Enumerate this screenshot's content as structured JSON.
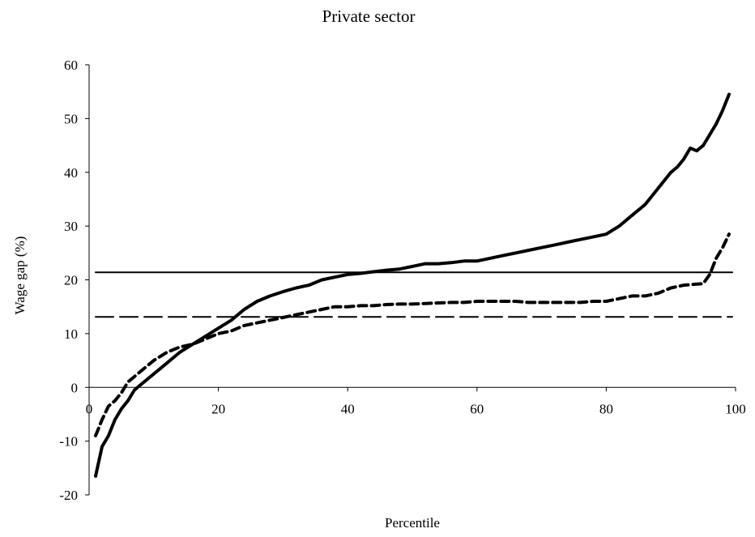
{
  "chart_data": {
    "type": "line",
    "title": "Private sector",
    "xlabel": "Percentile",
    "ylabel": "Wage gap (%)",
    "xlim": [
      0,
      100
    ],
    "ylim": [
      -20,
      60
    ],
    "x_ticks": [
      0,
      20,
      40,
      60,
      80,
      100
    ],
    "y_ticks": [
      -20,
      -10,
      0,
      10,
      20,
      30,
      40,
      50,
      60
    ],
    "grid": false,
    "legend": "none",
    "series": [
      {
        "style": "solid",
        "color": "#000000",
        "x": [
          1,
          2,
          3,
          4,
          5,
          6,
          7,
          8,
          9,
          10,
          12,
          14,
          16,
          18,
          20,
          22,
          24,
          26,
          28,
          30,
          32,
          34,
          36,
          38,
          40,
          42,
          44,
          46,
          48,
          50,
          52,
          54,
          56,
          58,
          60,
          62,
          64,
          66,
          68,
          70,
          72,
          74,
          76,
          78,
          80,
          82,
          84,
          86,
          88,
          89,
          90,
          91,
          92,
          93,
          94,
          95,
          96,
          97,
          98,
          99
        ],
        "values": [
          -16.5,
          -11,
          -9,
          -6,
          -4,
          -2.5,
          -0.5,
          0.5,
          1.5,
          2.5,
          4.5,
          6.5,
          8,
          9.5,
          11,
          12.5,
          14.5,
          16,
          17,
          17.8,
          18.5,
          19,
          20,
          20.5,
          21,
          21.2,
          21.5,
          21.8,
          22,
          22.5,
          23,
          23,
          23.2,
          23.5,
          23.5,
          24,
          24.5,
          25,
          25.5,
          26,
          26.5,
          27,
          27.5,
          28,
          28.5,
          30,
          32,
          34,
          37,
          38.5,
          40,
          41,
          42.5,
          44.5,
          44,
          45,
          47,
          49,
          51.5,
          54.5
        ]
      },
      {
        "style": "dashed",
        "color": "#000000",
        "x": [
          1,
          2,
          3,
          4,
          5,
          6,
          7,
          8,
          10,
          12,
          14,
          16,
          18,
          20,
          22,
          24,
          26,
          28,
          30,
          32,
          34,
          36,
          38,
          40,
          42,
          44,
          46,
          48,
          50,
          52,
          54,
          56,
          58,
          60,
          62,
          64,
          66,
          68,
          70,
          72,
          74,
          76,
          78,
          80,
          82,
          84,
          86,
          88,
          90,
          92,
          94,
          95,
          96,
          97,
          98,
          99
        ],
        "values": [
          -9,
          -6,
          -3.5,
          -2.5,
          -1,
          1,
          2,
          3,
          5,
          6.5,
          7.5,
          8,
          9,
          10,
          10.5,
          11.5,
          12,
          12.5,
          13,
          13.5,
          14,
          14.5,
          15,
          15,
          15.2,
          15.2,
          15.4,
          15.5,
          15.5,
          15.6,
          15.7,
          15.8,
          15.8,
          16,
          16,
          16,
          16,
          15.8,
          15.8,
          15.8,
          15.8,
          15.8,
          16,
          16,
          16.5,
          17,
          17,
          17.5,
          18.5,
          19,
          19.2,
          19.3,
          21,
          24,
          26,
          28.5
        ]
      },
      {
        "style": "solid-reference",
        "color": "#000000",
        "x": [
          1,
          99
        ],
        "values": [
          21.4,
          21.4
        ]
      },
      {
        "style": "long-dash-reference",
        "color": "#000000",
        "x": [
          1,
          99
        ],
        "values": [
          13.1,
          13.1
        ]
      }
    ]
  }
}
